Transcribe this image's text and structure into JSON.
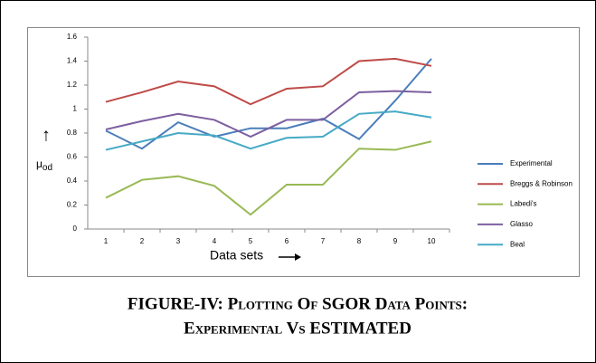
{
  "chart_data": {
    "type": "line",
    "categories": [
      "1",
      "2",
      "3",
      "4",
      "5",
      "6",
      "7",
      "8",
      "9",
      "10"
    ],
    "series": [
      {
        "name": "Experimental",
        "color": "#4a7ebb",
        "values": [
          0.82,
          0.67,
          0.89,
          0.77,
          0.84,
          0.84,
          0.92,
          0.75,
          1.07,
          1.42
        ]
      },
      {
        "name": "Breggs & Robinson",
        "color": "#be4b48",
        "values": [
          1.06,
          1.14,
          1.23,
          1.19,
          1.04,
          1.17,
          1.19,
          1.4,
          1.42,
          1.36
        ]
      },
      {
        "name": "Labedi's",
        "color": "#98b954",
        "values": [
          0.26,
          0.41,
          0.44,
          0.36,
          0.12,
          0.37,
          0.37,
          0.67,
          0.66,
          0.73
        ]
      },
      {
        "name": "Glasso",
        "color": "#7d5fa0",
        "values": [
          0.83,
          0.9,
          0.96,
          0.91,
          0.77,
          0.91,
          0.91,
          1.14,
          1.15,
          1.14
        ]
      },
      {
        "name": "Beal",
        "color": "#46aac5",
        "values": [
          0.66,
          0.73,
          0.8,
          0.78,
          0.67,
          0.76,
          0.77,
          0.96,
          0.98,
          0.93
        ]
      }
    ],
    "ylim": [
      0,
      1.6
    ],
    "yticks": [
      0,
      0.2,
      0.4,
      0.6,
      0.8,
      1,
      1.2,
      1.4,
      1.6
    ],
    "x_label": "Data sets",
    "y_label": "μ",
    "y_label_sub": "od",
    "grid": false,
    "legend": "right"
  },
  "caption": [
    "FIGURE-IV: Plotting Of SGOR Data Points:",
    "Experimental Vs ESTIMATED"
  ]
}
